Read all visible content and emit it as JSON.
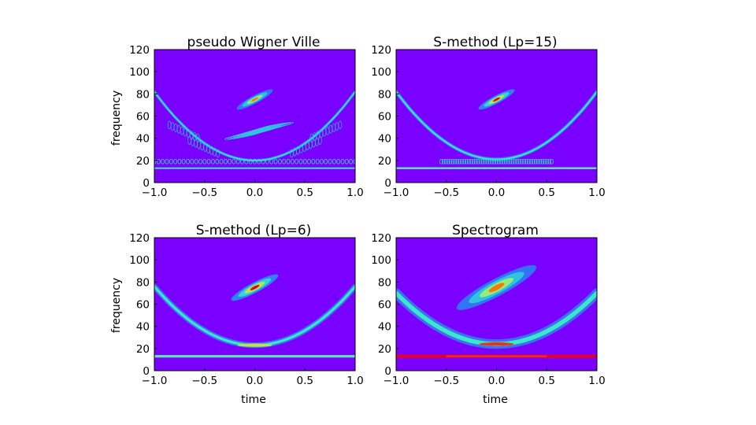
{
  "chart_data": [
    {
      "type": "heatmap",
      "title": "pseudo Wigner Ville",
      "xlabel": "",
      "ylabel": "frequency",
      "xlim": [
        -1.0,
        1.0
      ],
      "ylim": [
        0,
        120
      ],
      "xticks": [
        "−1.0",
        "−0.5",
        "0.0",
        "0.5",
        "1.0"
      ],
      "yticks": [
        "0",
        "20",
        "40",
        "60",
        "80",
        "100",
        "120"
      ],
      "xtick_values": [
        -1.0,
        -0.5,
        0.0,
        0.5,
        1.0
      ],
      "ytick_values": [
        0,
        20,
        40,
        60,
        80,
        100,
        120
      ],
      "components": {
        "parabola": {
          "vertex_frequency": 20,
          "edge_frequency": 82
        },
        "tone_frequency": 13,
        "chirp_center": {
          "time": 0.0,
          "frequency": 75
        }
      }
    },
    {
      "type": "heatmap",
      "title": "S-method (Lp=15)",
      "xlabel": "",
      "ylabel": "",
      "xlim": [
        -1.0,
        1.0
      ],
      "ylim": [
        0,
        120
      ],
      "xticks": [
        "−1.0",
        "−0.5",
        "0.0",
        "0.5",
        "1.0"
      ],
      "yticks": [
        "0",
        "20",
        "40",
        "60",
        "80",
        "100",
        "120"
      ],
      "xtick_values": [
        -1.0,
        -0.5,
        0.0,
        0.5,
        1.0
      ],
      "ytick_values": [
        0,
        20,
        40,
        60,
        80,
        100,
        120
      ],
      "components": {
        "parabola": {
          "vertex_frequency": 21,
          "edge_frequency": 82
        },
        "tone_frequency": 13,
        "chirp_center": {
          "time": 0.0,
          "frequency": 75
        }
      }
    },
    {
      "type": "heatmap",
      "title": "S-method (Lp=6)",
      "xlabel": "time",
      "ylabel": "frequency",
      "xlim": [
        -1.0,
        1.0
      ],
      "ylim": [
        0,
        120
      ],
      "xticks": [
        "−1.0",
        "−0.5",
        "0.0",
        "0.5",
        "1.0"
      ],
      "yticks": [
        "0",
        "20",
        "40",
        "60",
        "80",
        "100",
        "120"
      ],
      "xtick_values": [
        -1.0,
        -0.5,
        0.0,
        0.5,
        1.0
      ],
      "ytick_values": [
        0,
        20,
        40,
        60,
        80,
        100,
        120
      ],
      "components": {
        "parabola": {
          "vertex_frequency": 23,
          "edge_frequency": 76
        },
        "tone_frequency": 13,
        "chirp_center": {
          "time": 0.0,
          "frequency": 75
        }
      }
    },
    {
      "type": "heatmap",
      "title": "Spectrogram",
      "xlabel": "time",
      "ylabel": "",
      "xlim": [
        -1.0,
        1.0
      ],
      "ylim": [
        0,
        120
      ],
      "xticks": [
        "−1.0",
        "−0.5",
        "0.0",
        "0.5",
        "1.0"
      ],
      "yticks": [
        "0",
        "20",
        "40",
        "60",
        "80",
        "100",
        "120"
      ],
      "xtick_values": [
        -1.0,
        -0.5,
        0.0,
        0.5,
        1.0
      ],
      "ytick_values": [
        0,
        20,
        40,
        60,
        80,
        100,
        120
      ],
      "components": {
        "parabola": {
          "vertex_frequency": 24,
          "edge_frequency": 70
        },
        "tone_frequency": 13,
        "chirp_center": {
          "time": 0.0,
          "frequency": 75
        }
      }
    }
  ],
  "colors": {
    "background": "#7a00ff",
    "low": "#2a7cf4",
    "mid": "#40e0d0",
    "high": "#ffb000",
    "peak": "#e8001a"
  }
}
